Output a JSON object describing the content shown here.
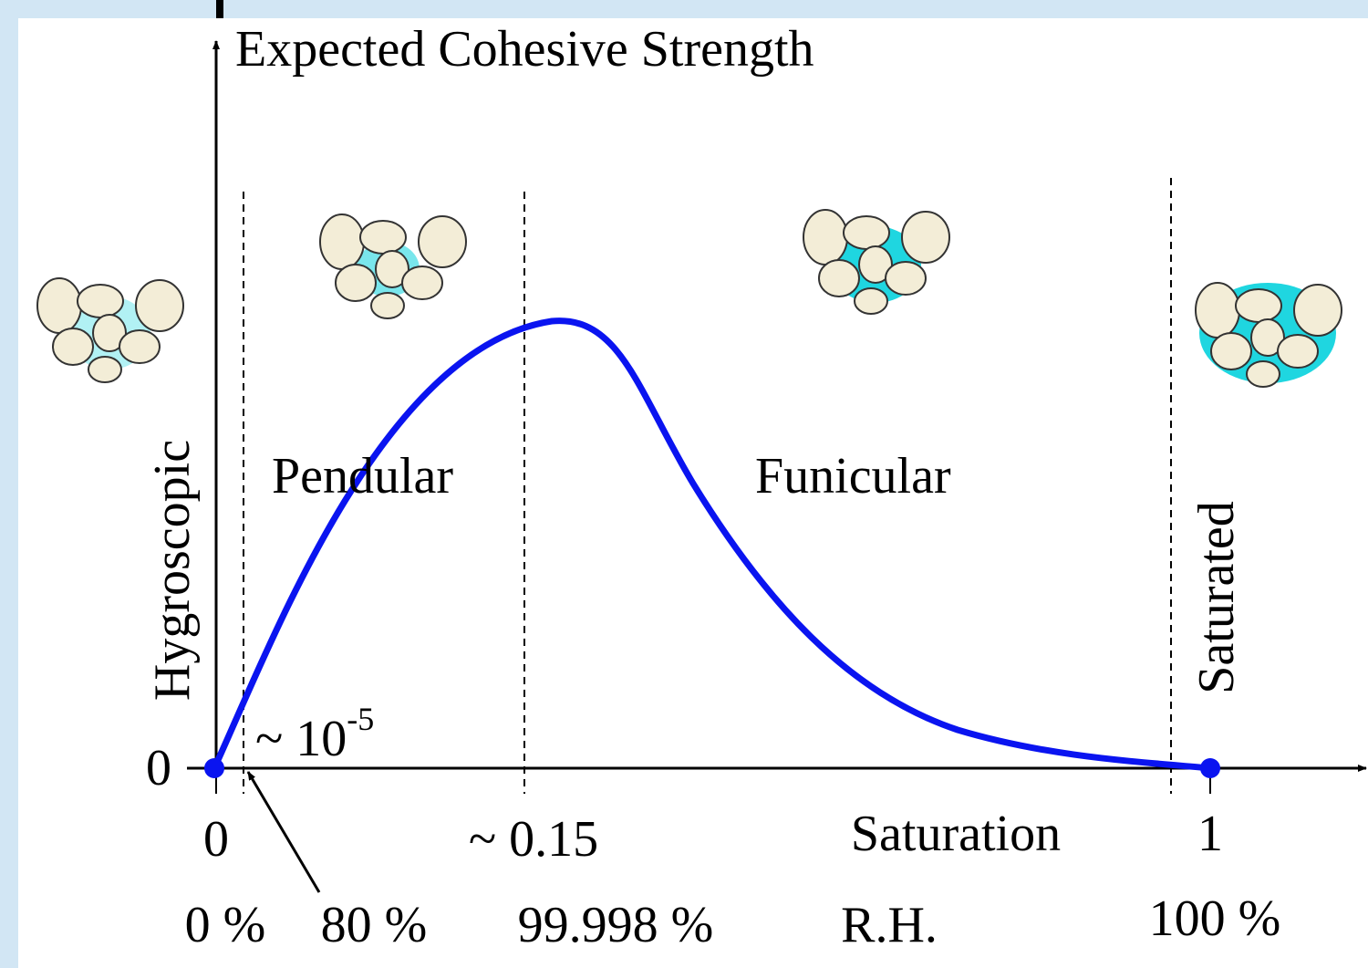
{
  "axis": {
    "y_label": "Expected Cohesive Strength",
    "y_zero": "0",
    "x_label": "Saturation",
    "rh_label": "R.H."
  },
  "regimes": [
    "Hygroscopic",
    "Pendular",
    "Funicular",
    "Saturated"
  ],
  "annotation": {
    "text": "~ 10",
    "superscript": "-5"
  },
  "saturation_ticks": [
    "0",
    "~ 0.15",
    "1"
  ],
  "rh_ticks": [
    "0 %",
    "80 %",
    "99.998 %",
    "100 %"
  ]
}
